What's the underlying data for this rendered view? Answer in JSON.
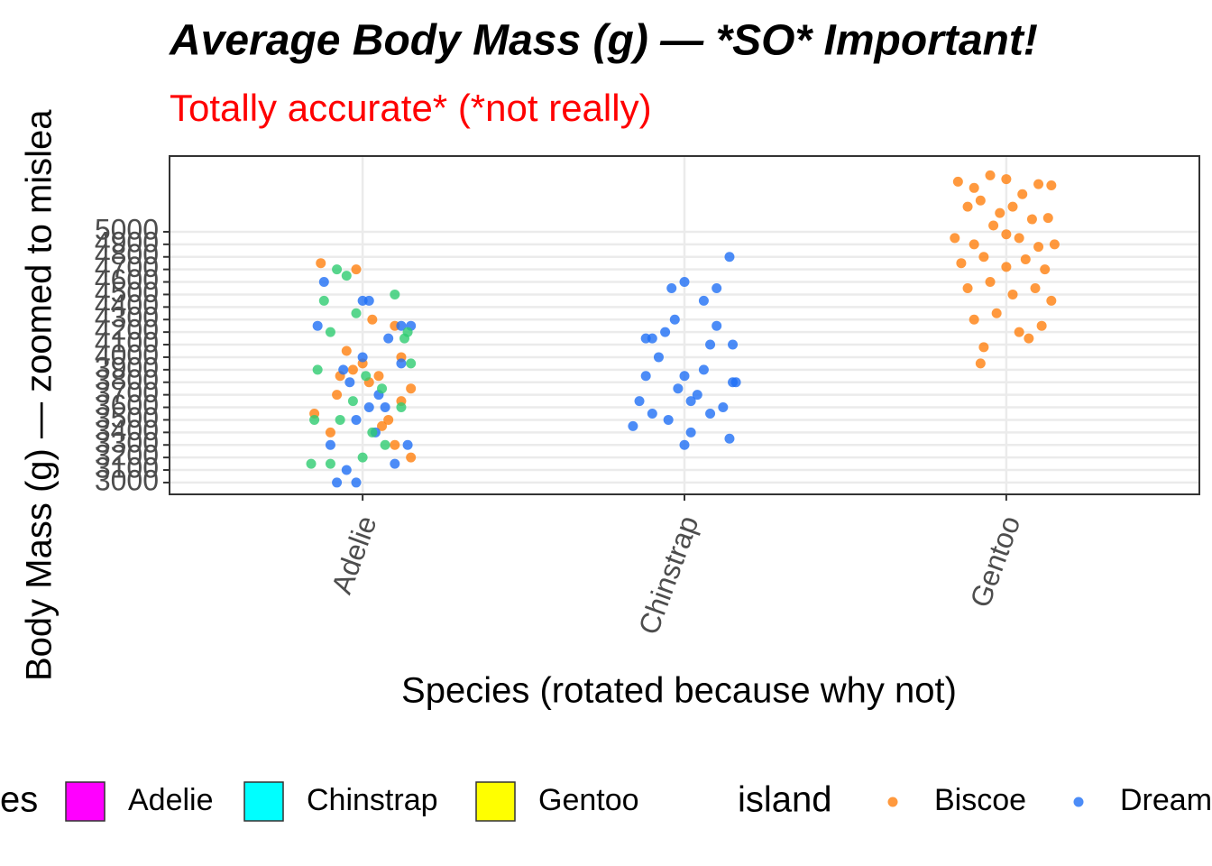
{
  "chart_data": {
    "type": "scatter",
    "title": "Average Body Mass (g) — *SO* Important!",
    "subtitle": "Totally accurate* (*not really)",
    "x_label": "Species (rotated because why not)",
    "y_label": "Body Mass (g) — zoomed to mislea",
    "categories": [
      "Adelie",
      "Chinstrap",
      "Gentoo"
    ],
    "xlim": [
      0.4,
      3.6
    ],
    "ylim": [
      2906,
      5604
    ],
    "yticks": [
      3000,
      3100,
      3200,
      3300,
      3400,
      3500,
      3600,
      3700,
      3800,
      3900,
      4000,
      4100,
      4200,
      4300,
      4400,
      4500,
      4600,
      4700,
      4800,
      4900,
      5000
    ],
    "grid": true,
    "series": [
      {
        "name": "Biscoe",
        "color": "#FF7F0E",
        "x": [
          2.85,
          2.9,
          2.95,
          3.0,
          3.05,
          3.1,
          3.14,
          2.88,
          2.92,
          2.98,
          3.02,
          3.08,
          3.13,
          2.84,
          2.9,
          2.96,
          3.0,
          3.04,
          3.1,
          3.15,
          2.86,
          2.93,
          3.0,
          3.06,
          3.12,
          2.88,
          2.95,
          3.02,
          3.09,
          3.14,
          2.9,
          2.97,
          3.04,
          3.11,
          2.93,
          3.07,
          2.92,
          0.87,
          0.92,
          0.95,
          1.0,
          1.05,
          1.1,
          1.15,
          0.85,
          0.9,
          1.02,
          1.08,
          1.12,
          1.15,
          0.97,
          1.03,
          1.1,
          1.06,
          0.93,
          0.98,
          1.12
        ],
        "values": [
          5400,
          5350,
          5450,
          5420,
          5300,
          5380,
          5370,
          5200,
          5250,
          5150,
          5200,
          5100,
          5110,
          4950,
          4900,
          5050,
          4980,
          4950,
          4880,
          4900,
          4750,
          4800,
          4720,
          4780,
          4700,
          4550,
          4600,
          4500,
          4550,
          4450,
          4300,
          4350,
          4200,
          4250,
          4080,
          4150,
          3950,
          4750,
          3700,
          4050,
          3950,
          3850,
          3300,
          3200,
          3550,
          3400,
          3800,
          3500,
          3650,
          3750,
          3900,
          4300,
          4250,
          3450,
          3850,
          4700,
          4000
        ]
      },
      {
        "name": "Dream",
        "color": "#1F6FF5",
        "x": [
          1.84,
          1.86,
          1.88,
          1.9,
          1.92,
          1.94,
          1.96,
          1.98,
          2.0,
          2.02,
          2.04,
          2.06,
          2.08,
          2.1,
          2.12,
          2.14,
          2.15,
          2.1,
          2.06,
          2.0,
          1.97,
          1.9,
          2.14,
          2.16,
          2.15,
          2.02,
          1.95,
          2.08,
          2.0,
          1.88,
          0.88,
          0.9,
          0.92,
          0.95,
          0.98,
          1.0,
          1.02,
          1.05,
          1.08,
          1.12,
          1.15,
          1.14,
          0.98,
          1.02,
          0.94,
          1.04,
          1.1,
          0.86,
          1.0,
          0.96,
          1.07,
          1.12
        ],
        "values": [
          3450,
          3650,
          3850,
          3550,
          4000,
          4200,
          4550,
          3750,
          3300,
          3400,
          3700,
          3900,
          4100,
          4550,
          3600,
          3350,
          3800,
          4250,
          4450,
          4600,
          4300,
          4150,
          4800,
          3800,
          4100,
          3650,
          3500,
          3550,
          3850,
          4150,
          4600,
          3300,
          3000,
          3100,
          3000,
          4450,
          4450,
          3700,
          4150,
          4250,
          4250,
          3300,
          3500,
          3600,
          3900,
          3400,
          3150,
          4250,
          4000,
          3800,
          3600,
          3950
        ]
      },
      {
        "color": "#2ECC71",
        "x": [
          0.84,
          0.86,
          0.88,
          0.9,
          0.92,
          0.95,
          0.97,
          1.0,
          1.03,
          1.06,
          1.1,
          1.13,
          1.15,
          0.85,
          0.93,
          0.98,
          1.01,
          1.07,
          1.12,
          1.14,
          0.9
        ],
        "values": [
          3150,
          3900,
          4450,
          4200,
          4700,
          4650,
          3650,
          3200,
          3400,
          3750,
          4500,
          4150,
          3950,
          3500,
          3500,
          4350,
          3850,
          3300,
          3600,
          4200,
          3150
        ]
      }
    ],
    "fill_legend": {
      "title": "es",
      "items": [
        {
          "name": "Adelie",
          "color": "#FF00FF"
        },
        {
          "name": "Chinstrap",
          "color": "#00FFFF"
        },
        {
          "name": "Gentoo",
          "color": "#FFFF00"
        }
      ]
    },
    "color_legend_title": "island",
    "legend_position": "bottom"
  }
}
